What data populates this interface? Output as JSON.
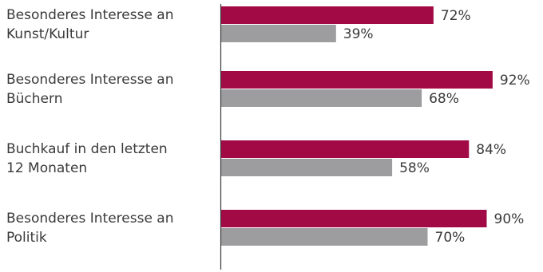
{
  "chart_data": {
    "type": "bar",
    "orientation": "horizontal",
    "title": "",
    "xlabel": "",
    "ylabel": "",
    "xlim": [
      0,
      100
    ],
    "grid": false,
    "legend": "none",
    "categories": [
      [
        "Besonderes Interesse an",
        "Kunst/Kultur"
      ],
      [
        "Besonderes Interesse an",
        "Büchern"
      ],
      [
        "Buchkauf in den letzten",
        "12 Monaten"
      ],
      [
        "Besonderes Interesse an",
        "Politik"
      ]
    ],
    "series": [
      {
        "color": "#a20a46",
        "values": [
          72,
          92,
          84,
          90
        ],
        "value_labels": [
          "72%",
          "92%",
          "84%",
          "90%"
        ]
      },
      {
        "color": "#9d9c9f",
        "values": [
          39,
          68,
          58,
          70
        ],
        "value_labels": [
          "39%",
          "68%",
          "58%",
          "70%"
        ]
      }
    ]
  },
  "axis_color": "#3a3a3a"
}
